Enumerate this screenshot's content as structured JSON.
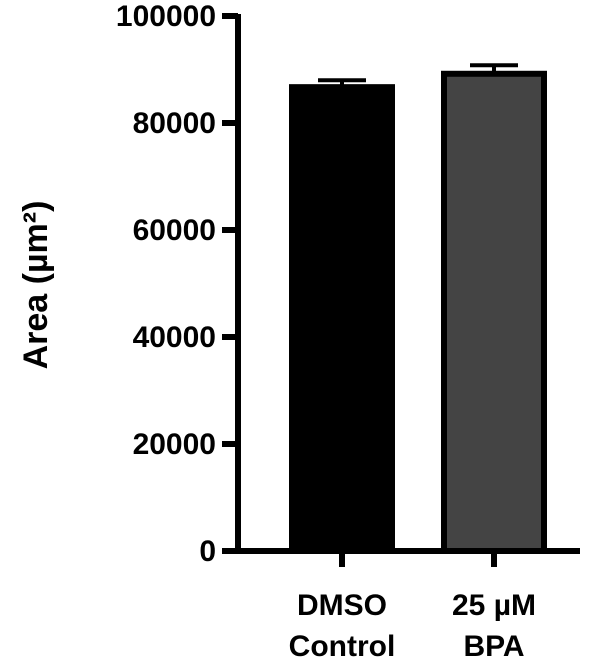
{
  "chart_data": {
    "type": "bar",
    "ylabel": "Area (µm²)",
    "categories": [
      [
        "DMSO",
        "Control"
      ],
      [
        "25 µM",
        "BPA"
      ]
    ],
    "values": [
      86700,
      89200
    ],
    "errors": [
      1300,
      1600
    ],
    "colors": [
      "#000000",
      "#444444"
    ],
    "ylim": [
      0,
      100000
    ],
    "yticks": [
      0,
      20000,
      40000,
      60000,
      80000,
      100000
    ]
  }
}
